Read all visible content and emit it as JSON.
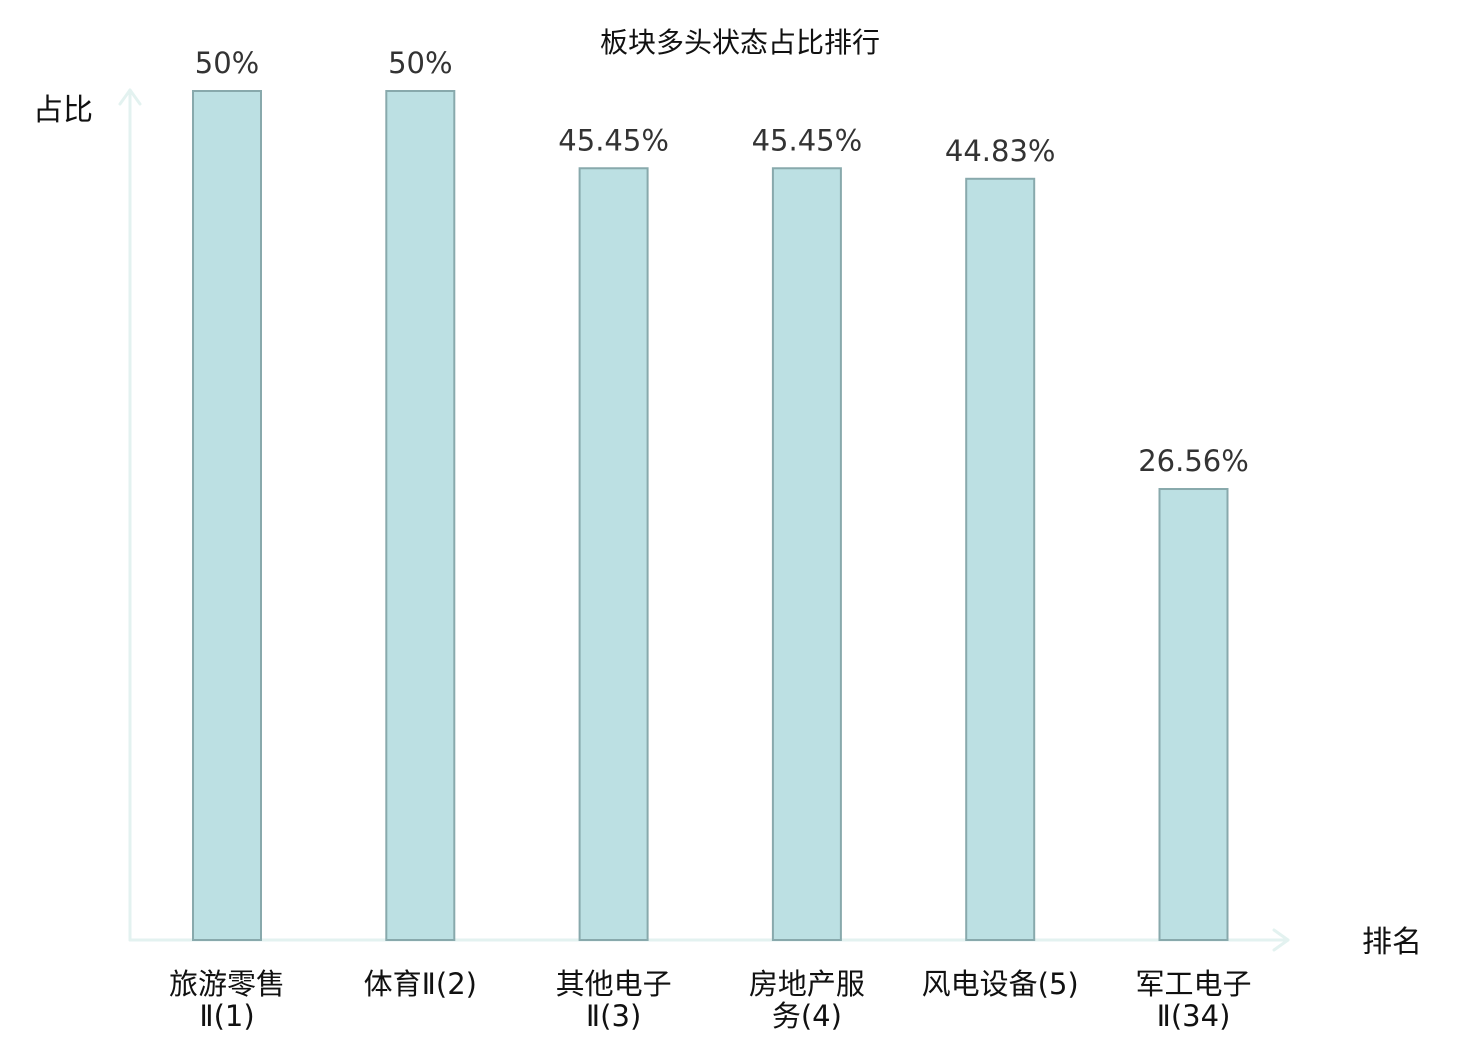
{
  "chart_data": {
    "type": "bar",
    "title": "板块多头状态占比排行",
    "ylabel": "占比",
    "xlabel": "排名",
    "ylim": [
      0,
      50
    ],
    "grid": false,
    "categories": [
      [
        "旅游零售",
        "Ⅱ(1)"
      ],
      [
        "体育Ⅱ(2)"
      ],
      [
        "其他电子",
        "Ⅱ(3)"
      ],
      [
        "房地产服",
        "务(4)"
      ],
      [
        "风电设备(5)"
      ],
      [
        "军工电子",
        "Ⅱ(34)"
      ]
    ],
    "values": [
      50,
      50,
      45.45,
      45.45,
      44.83,
      26.56
    ],
    "data_labels": [
      "50%",
      "50%",
      "45.45%",
      "45.45%",
      "44.83%",
      "26.56%"
    ],
    "highlight_index": 5,
    "colors": {
      "bar_fill": "#bce0e3",
      "bar_stroke": "#88a9ac",
      "axis": "#e3f2f0",
      "highlight_text": "#e8191e",
      "text": "#111111",
      "label_text": "#333333"
    }
  }
}
